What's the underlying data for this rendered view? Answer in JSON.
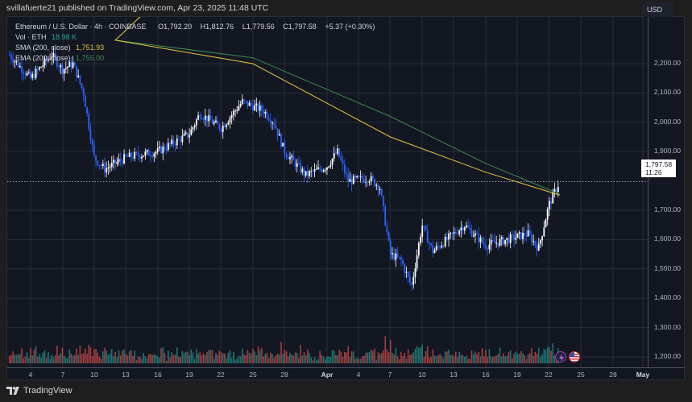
{
  "header": {
    "published": "svillafuerte21 published on TradingView.com, Apr 23, 2025 11:48 UTC"
  },
  "legend": {
    "symbol": "Ethereum / U.S. Dollar · 4h · COINBASE",
    "open": "O1,792.20",
    "high": "H1,812.76",
    "low": "L1,779.56",
    "close": "C1,797.58",
    "change": "+5.37 (+0.30%)",
    "vol_label": "Vol · ETH",
    "vol_value": "18.98 K",
    "sma_label": "SMA (200, close)",
    "sma_value": "1,751.93",
    "ema_label": "EMA (200, close)",
    "ema_value": "1,755.00"
  },
  "price_axis": {
    "currency": "USD",
    "ticks": [
      "2,200.00",
      "2,100.00",
      "2,000.00",
      "1,900.00",
      "1,700.00",
      "1,600.00",
      "1,500.00",
      "1,400.00",
      "1,300.00",
      "1,200.00"
    ],
    "last_price": "1,797.58",
    "countdown": "11:26"
  },
  "time_axis": {
    "ticks": [
      "4",
      "7",
      "10",
      "13",
      "16",
      "19",
      "22",
      "25",
      "28",
      "Apr",
      "4",
      "7",
      "10",
      "13",
      "16",
      "19",
      "22",
      "25",
      "28",
      "May"
    ]
  },
  "footer": {
    "brand": "TradingView"
  },
  "colors": {
    "background": "#131722",
    "up_candle": "#ffffff",
    "down_candle": "#2962ff",
    "sma": "#e0c341",
    "ema": "#3d8a4e",
    "vol_up": "#26a69a",
    "vol_down": "#ef5350",
    "grid": "#2a2e39"
  },
  "chart_data": {
    "type": "candlestick",
    "title": "Ethereum / U.S. Dollar · 4h · COINBASE",
    "xlabel": "",
    "ylabel": "USD",
    "ylim": [
      1170,
      2260
    ],
    "grid": true,
    "x_ticks": [
      "Mar 4",
      "Mar 7",
      "Mar 10",
      "Mar 13",
      "Mar 16",
      "Mar 19",
      "Mar 22",
      "Mar 25",
      "Mar 28",
      "Apr 1",
      "Apr 4",
      "Apr 7",
      "Apr 10",
      "Apr 13",
      "Apr 16",
      "Apr 19",
      "Apr 22",
      "Apr 25",
      "Apr 28",
      "May 1"
    ],
    "ohlc_last": {
      "open": 1792.2,
      "high": 1812.76,
      "low": 1779.56,
      "close": 1797.58,
      "change": 5.37,
      "change_pct": 0.3
    },
    "approx_close_path": [
      {
        "date": "Mar 2",
        "close": 2230
      },
      {
        "date": "Mar 4",
        "close": 2150
      },
      {
        "date": "Mar 6",
        "close": 2230
      },
      {
        "date": "Mar 7",
        "close": 2180
      },
      {
        "date": "Mar 8",
        "close": 2200
      },
      {
        "date": "Mar 9",
        "close": 2100
      },
      {
        "date": "Mar 10",
        "close": 1880
      },
      {
        "date": "Mar 11",
        "close": 1840
      },
      {
        "date": "Mar 13",
        "close": 1880
      },
      {
        "date": "Mar 16",
        "close": 1900
      },
      {
        "date": "Mar 19",
        "close": 1960
      },
      {
        "date": "Mar 20",
        "close": 2030
      },
      {
        "date": "Mar 22",
        "close": 1980
      },
      {
        "date": "Mar 24",
        "close": 2070
      },
      {
        "date": "Mar 26",
        "close": 2040
      },
      {
        "date": "Mar 27",
        "close": 2000
      },
      {
        "date": "Mar 28",
        "close": 1900
      },
      {
        "date": "Mar 30",
        "close": 1820
      },
      {
        "date": "Apr 1",
        "close": 1850
      },
      {
        "date": "Apr 2",
        "close": 1900
      },
      {
        "date": "Apr 3",
        "close": 1800
      },
      {
        "date": "Apr 5",
        "close": 1810
      },
      {
        "date": "Apr 6",
        "close": 1780
      },
      {
        "date": "Apr 7",
        "close": 1550
      },
      {
        "date": "Apr 8",
        "close": 1530
      },
      {
        "date": "Apr 9",
        "close": 1440
      },
      {
        "date": "Apr 10",
        "close": 1650
      },
      {
        "date": "Apr 11",
        "close": 1560
      },
      {
        "date": "Apr 13",
        "close": 1620
      },
      {
        "date": "Apr 14",
        "close": 1650
      },
      {
        "date": "Apr 16",
        "close": 1580
      },
      {
        "date": "Apr 18",
        "close": 1600
      },
      {
        "date": "Apr 20",
        "close": 1620
      },
      {
        "date": "Apr 21",
        "close": 1570
      },
      {
        "date": "Apr 22",
        "close": 1720
      },
      {
        "date": "Apr 23",
        "close": 1797.58
      }
    ],
    "series": [
      {
        "name": "SMA (200, close)",
        "last": 1751.93,
        "approx_path": [
          {
            "date": "Mar 12",
            "value": 2280
          },
          {
            "date": "Mar 25",
            "value": 2200
          },
          {
            "date": "Apr 7",
            "value": 1950
          },
          {
            "date": "Apr 16",
            "value": 1830
          },
          {
            "date": "Apr 23",
            "value": 1751.93
          }
        ]
      },
      {
        "name": "EMA (200, close)",
        "last": 1755.0,
        "approx_path": [
          {
            "date": "Mar 12",
            "value": 2280
          },
          {
            "date": "Mar 25",
            "value": 2220
          },
          {
            "date": "Apr 7",
            "value": 2020
          },
          {
            "date": "Apr 16",
            "value": 1860
          },
          {
            "date": "Apr 23",
            "value": 1755.0
          }
        ]
      },
      {
        "name": "Vol · ETH",
        "last": "18.98 K"
      }
    ]
  }
}
